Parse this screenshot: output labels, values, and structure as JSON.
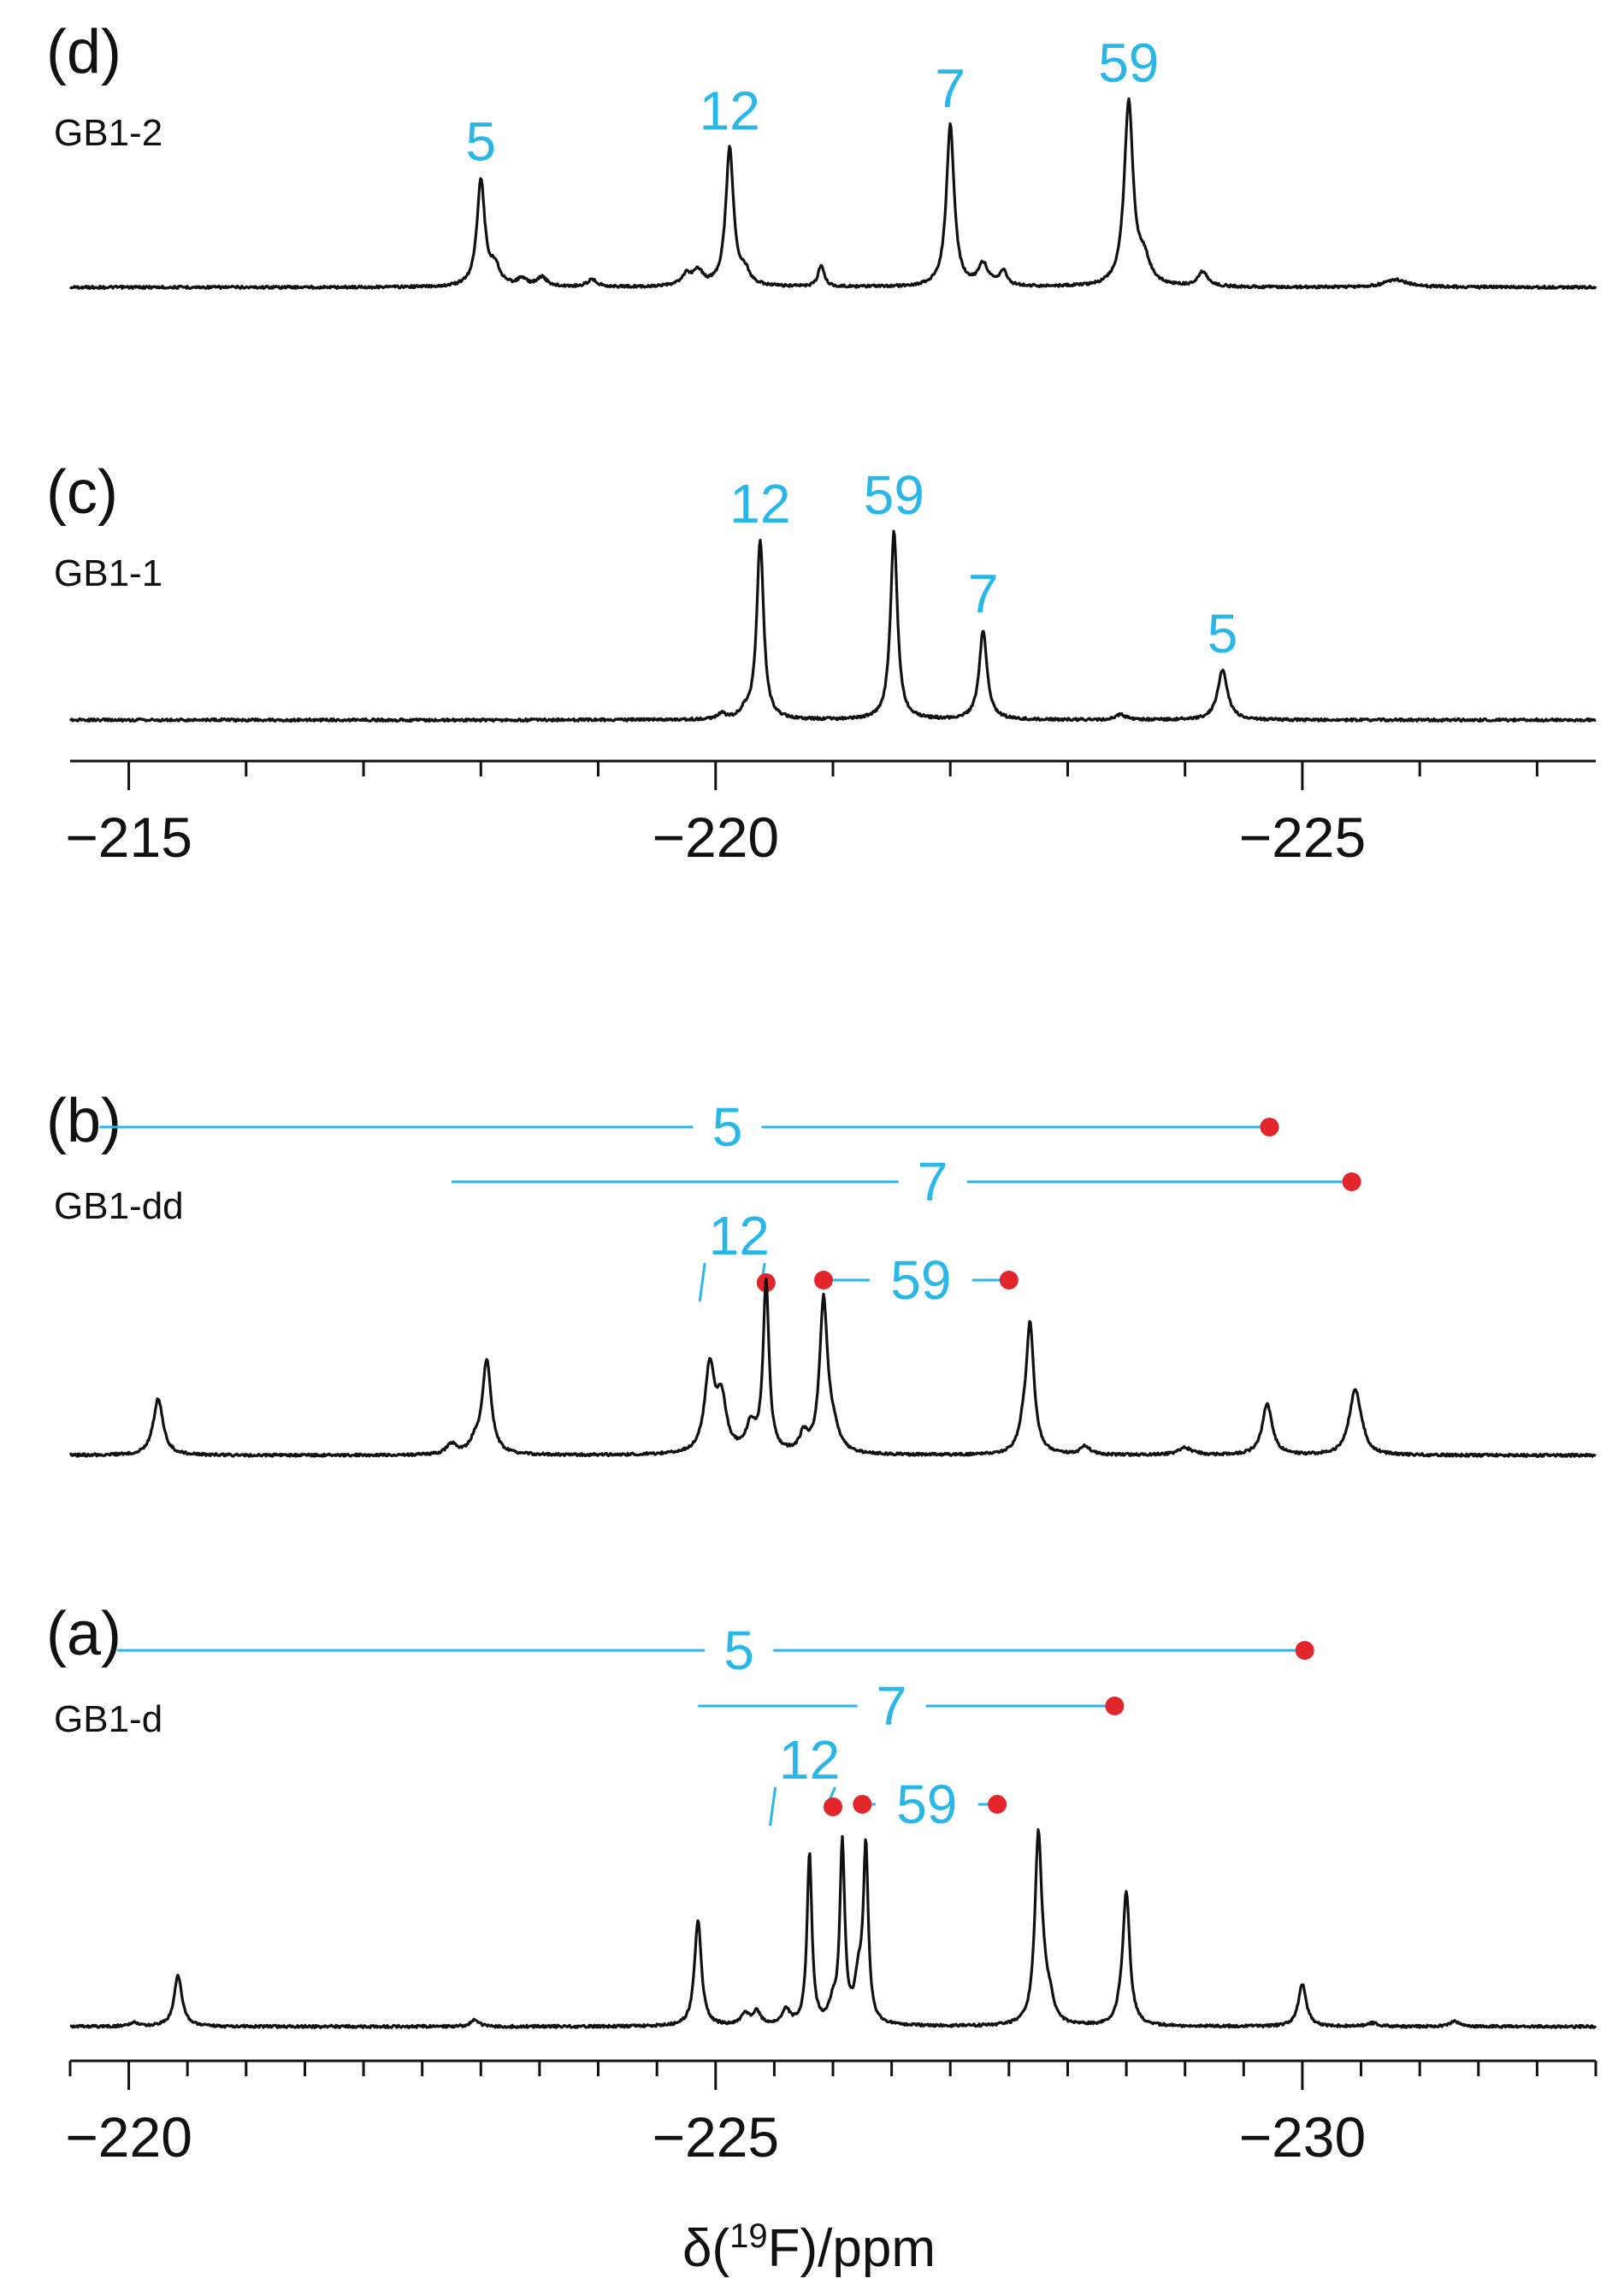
{
  "figure": {
    "axis_title_prefix": "δ(",
    "axis_title_sup": "19",
    "axis_title_suffix": "F)/ppm"
  },
  "colors": {
    "spectrum": "#111111",
    "label": "#29b6e8",
    "marker": "#e3262c"
  },
  "chart_data": [
    {
      "type": "line",
      "panel": "(d)",
      "sample": "GB1-2",
      "xlabel": "",
      "xlim": [
        -214.5,
        -227.5
      ],
      "peaks": [
        {
          "x": -218.0,
          "h": 0.58,
          "w": 0.04
        },
        {
          "x": -218.12,
          "h": 0.1,
          "w": 0.05
        },
        {
          "x": -218.35,
          "h": 0.04,
          "w": 0.05
        },
        {
          "x": -218.52,
          "h": 0.05,
          "w": 0.05
        },
        {
          "x": -218.95,
          "h": 0.04,
          "w": 0.05
        },
        {
          "x": -219.75,
          "h": 0.06,
          "w": 0.05
        },
        {
          "x": -219.85,
          "h": 0.08,
          "w": 0.05
        },
        {
          "x": -220.12,
          "h": 0.75,
          "w": 0.04
        },
        {
          "x": -220.25,
          "h": 0.07,
          "w": 0.05
        },
        {
          "x": -220.9,
          "h": 0.12,
          "w": 0.03
        },
        {
          "x": -222.0,
          "h": 0.88,
          "w": 0.04
        },
        {
          "x": -222.28,
          "h": 0.12,
          "w": 0.05
        },
        {
          "x": -222.45,
          "h": 0.08,
          "w": 0.04
        },
        {
          "x": -223.52,
          "h": 1.0,
          "w": 0.045
        },
        {
          "x": -223.65,
          "h": 0.13,
          "w": 0.06
        },
        {
          "x": -224.15,
          "h": 0.08,
          "w": 0.05
        },
        {
          "x": -225.8,
          "h": 0.04,
          "w": 0.12
        }
      ],
      "labels": [
        {
          "text": "5",
          "x": -218.0
        },
        {
          "text": "12",
          "x": -220.12
        },
        {
          "text": "7",
          "x": -222.0
        },
        {
          "text": "59",
          "x": -223.52
        }
      ]
    },
    {
      "type": "line",
      "panel": "(c)",
      "sample": "GB1-1",
      "xlabel": "",
      "xlim": [
        -214.5,
        -227.5
      ],
      "axis": {
        "min": -214.5,
        "max": -227.5,
        "major_ticks": [
          -215,
          -220,
          -225
        ],
        "major_labels": [
          "−215",
          "−220",
          "−225"
        ],
        "minor_step": 1
      },
      "peaks": [
        {
          "x": -220.05,
          "h": 0.03,
          "w": 0.04
        },
        {
          "x": -220.25,
          "h": 0.04,
          "w": 0.04
        },
        {
          "x": -220.38,
          "h": 1.0,
          "w": 0.035
        },
        {
          "x": -221.52,
          "h": 1.05,
          "w": 0.035
        },
        {
          "x": -222.28,
          "h": 0.5,
          "w": 0.04
        },
        {
          "x": -223.45,
          "h": 0.03,
          "w": 0.05
        },
        {
          "x": -224.32,
          "h": 0.28,
          "w": 0.05
        }
      ],
      "labels": [
        {
          "text": "12",
          "x": -220.38
        },
        {
          "text": "59",
          "x": -221.52
        },
        {
          "text": "7",
          "x": -222.28
        },
        {
          "text": "5",
          "x": -224.32
        }
      ]
    },
    {
      "type": "line",
      "panel": "(b)",
      "sample": "GB1-dd",
      "xlabel": "",
      "xlim": [
        -219.5,
        -232.5
      ],
      "peaks": [
        {
          "x": -220.25,
          "h": 0.33,
          "w": 0.05
        },
        {
          "x": -222.75,
          "h": 0.06,
          "w": 0.05
        },
        {
          "x": -222.95,
          "h": 0.06,
          "w": 0.05
        },
        {
          "x": -223.05,
          "h": 0.55,
          "w": 0.045
        },
        {
          "x": -224.95,
          "h": 0.5,
          "w": 0.05
        },
        {
          "x": -225.05,
          "h": 0.3,
          "w": 0.05
        },
        {
          "x": -225.3,
          "h": 0.15,
          "w": 0.05
        },
        {
          "x": -225.43,
          "h": 1.0,
          "w": 0.03
        },
        {
          "x": -225.75,
          "h": 0.1,
          "w": 0.04
        },
        {
          "x": -225.92,
          "h": 0.88,
          "w": 0.04
        },
        {
          "x": -226.0,
          "h": 0.12,
          "w": 0.06
        },
        {
          "x": -227.62,
          "h": 0.1,
          "w": 0.04
        },
        {
          "x": -227.68,
          "h": 0.75,
          "w": 0.04
        },
        {
          "x": -228.15,
          "h": 0.05,
          "w": 0.05
        },
        {
          "x": -229.0,
          "h": 0.04,
          "w": 0.08
        },
        {
          "x": -229.7,
          "h": 0.3,
          "w": 0.05
        },
        {
          "x": -230.4,
          "h": 0.05,
          "w": 0.05
        },
        {
          "x": -230.45,
          "h": 0.33,
          "w": 0.05
        },
        {
          "x": -230.5,
          "h": 0.07,
          "w": 0.05
        }
      ],
      "assignments": [
        {
          "text": "5",
          "from": -219.75,
          "to": -229.72,
          "label_x": -225.1,
          "row": 1
        },
        {
          "text": "7",
          "from": -222.75,
          "to": -230.42,
          "label_x": -226.85,
          "row": 2
        },
        {
          "text": "59",
          "from": -225.92,
          "to": -227.5,
          "label_x": -226.75,
          "row": 3
        },
        {
          "text": "12",
          "label_x": -225.2,
          "row": 3,
          "dot_x": -225.43
        }
      ]
    },
    {
      "type": "line",
      "panel": "(a)",
      "sample": "GB1-d",
      "xlabel": "δ(19F)/ppm",
      "xlim": [
        -219.5,
        -232.5
      ],
      "axis": {
        "min": -219.5,
        "max": -232.5,
        "major_ticks": [
          -220,
          -225,
          -230
        ],
        "major_labels": [
          "−220",
          "−225",
          "−230"
        ],
        "minor_step": 0.5
      },
      "peaks": [
        {
          "x": -220.05,
          "h": 0.02,
          "w": 0.05
        },
        {
          "x": -220.42,
          "h": 0.3,
          "w": 0.04
        },
        {
          "x": -222.95,
          "h": 0.04,
          "w": 0.04
        },
        {
          "x": -224.85,
          "h": 0.62,
          "w": 0.035
        },
        {
          "x": -225.25,
          "h": 0.07,
          "w": 0.04
        },
        {
          "x": -225.35,
          "h": 0.08,
          "w": 0.04
        },
        {
          "x": -225.6,
          "h": 0.09,
          "w": 0.04
        },
        {
          "x": -225.8,
          "h": 1.0,
          "w": 0.025
        },
        {
          "x": -226.0,
          "h": 0.1,
          "w": 0.04
        },
        {
          "x": -226.08,
          "h": 1.04,
          "w": 0.025
        },
        {
          "x": -226.22,
          "h": 0.25,
          "w": 0.04
        },
        {
          "x": -226.28,
          "h": 1.0,
          "w": 0.025
        },
        {
          "x": -227.75,
          "h": 1.08,
          "w": 0.035
        },
        {
          "x": -227.8,
          "h": 0.13,
          "w": 0.04
        },
        {
          "x": -227.85,
          "h": 0.1,
          "w": 0.04
        },
        {
          "x": -228.45,
          "h": 0.05,
          "w": 0.04
        },
        {
          "x": -228.5,
          "h": 0.77,
          "w": 0.035
        },
        {
          "x": -230.0,
          "h": 0.25,
          "w": 0.04
        },
        {
          "x": -230.6,
          "h": 0.02,
          "w": 0.05
        },
        {
          "x": -231.3,
          "h": 0.03,
          "w": 0.05
        }
      ],
      "assignments": [
        {
          "text": "5",
          "from": -219.9,
          "to": -230.02,
          "label_x": -225.2,
          "row": 1
        },
        {
          "text": "7",
          "from": -224.85,
          "to": -228.4,
          "label_x": -226.5,
          "row": 2
        },
        {
          "text": "59",
          "from": -226.25,
          "to": -227.4,
          "label_x": -226.8,
          "row": 3
        },
        {
          "text": "12",
          "label_x": -225.8,
          "row": 3,
          "dot_x": -226.0
        }
      ]
    }
  ]
}
